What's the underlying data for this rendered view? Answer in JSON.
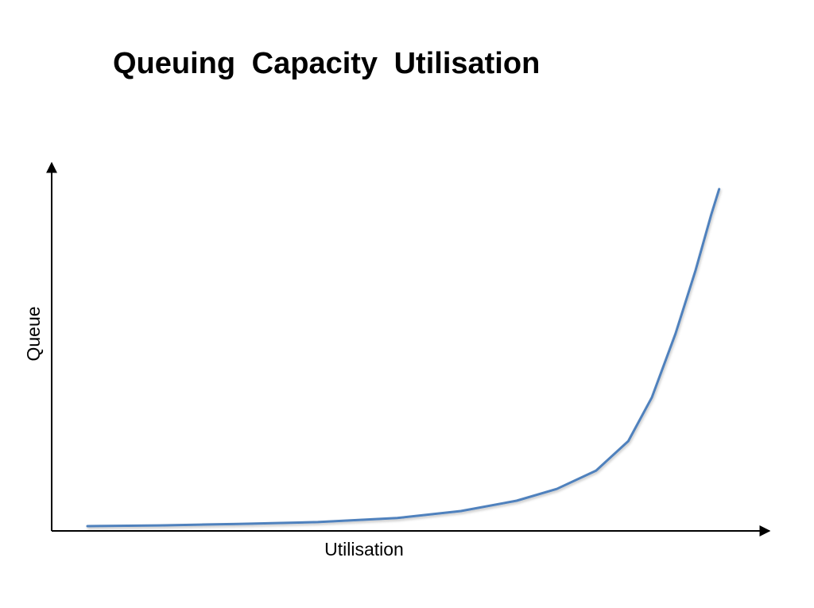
{
  "chart_data": {
    "type": "line",
    "title": "Queuing Capacity Utilisation",
    "x_label": "Utilisation",
    "y_label": "Queue",
    "xlim": [
      0,
      100
    ],
    "ylim": [
      0,
      100
    ],
    "x": [
      5,
      15,
      26.1,
      37.2,
      48.3,
      57.2,
      65,
      70.6,
      76.1,
      80.6,
      83.9,
      87.2,
      90,
      92.2,
      93.3
    ],
    "values": [
      1.3,
      1.5,
      1.9,
      2.4,
      3.5,
      5.4,
      8.2,
      11.4,
      16.4,
      24.4,
      36.3,
      53.6,
      70.8,
      86,
      92.9
    ],
    "color": "#4f81bd"
  }
}
